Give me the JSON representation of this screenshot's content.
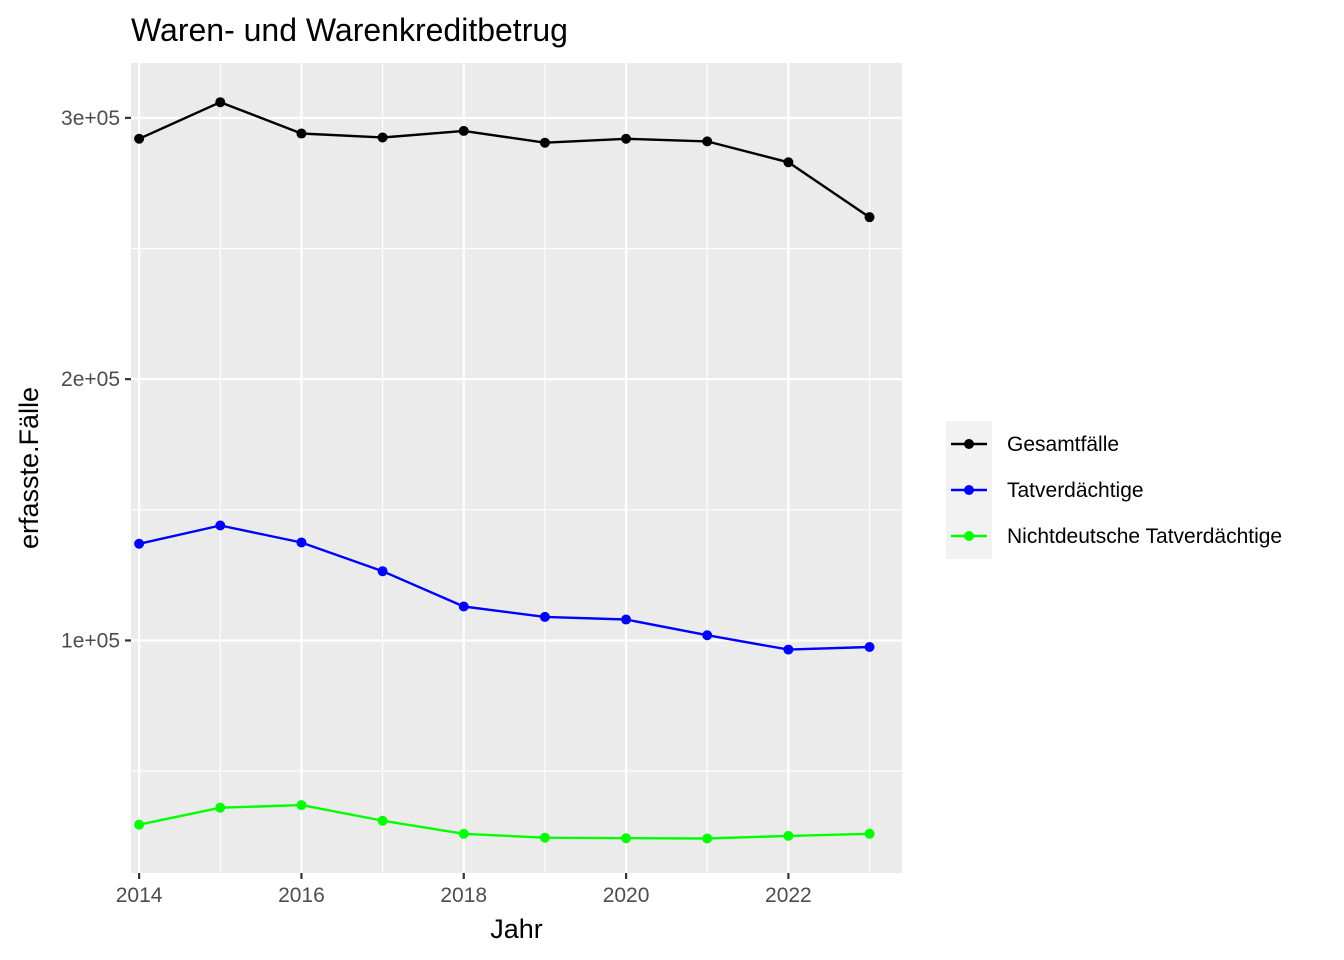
{
  "chart_data": {
    "type": "line",
    "title": "Waren- und Warenkreditbetrug",
    "xlabel": "Jahr",
    "ylabel": "erfasste.Fälle",
    "x": [
      2014,
      2015,
      2016,
      2017,
      2018,
      2019,
      2020,
      2021,
      2022,
      2023
    ],
    "xlim": [
      2013.9,
      2023.4
    ],
    "ylim": [
      11000,
      321000
    ],
    "x_ticks": [
      2014,
      2016,
      2018,
      2020,
      2022
    ],
    "x_tick_labels": [
      "2014",
      "2016",
      "2018",
      "2020",
      "2022"
    ],
    "y_ticks": [
      100000,
      200000,
      300000
    ],
    "y_tick_labels": [
      "1e+05",
      "2e+05",
      "3e+05"
    ],
    "y_minor_ticks": [
      50000,
      150000,
      250000
    ],
    "x_minor_ticks": [
      2015,
      2017,
      2019,
      2021,
      2023
    ],
    "grid": true,
    "legend_position": "right",
    "series": [
      {
        "name": "Gesamtfälle",
        "color": "#000000",
        "values": [
          292000,
          306000,
          294000,
          292500,
          295000,
          290500,
          292000,
          291000,
          283000,
          262000
        ]
      },
      {
        "name": "Tatverdächtige",
        "color": "#0000ff",
        "values": [
          137000,
          144000,
          137500,
          126500,
          113000,
          109000,
          108000,
          102000,
          96500,
          97500
        ]
      },
      {
        "name": "Nichtdeutsche Tatverdächtige",
        "color": "#00ff00",
        "values": [
          29500,
          36000,
          37000,
          31000,
          26000,
          24500,
          24300,
          24200,
          25200,
          26000
        ]
      }
    ]
  }
}
